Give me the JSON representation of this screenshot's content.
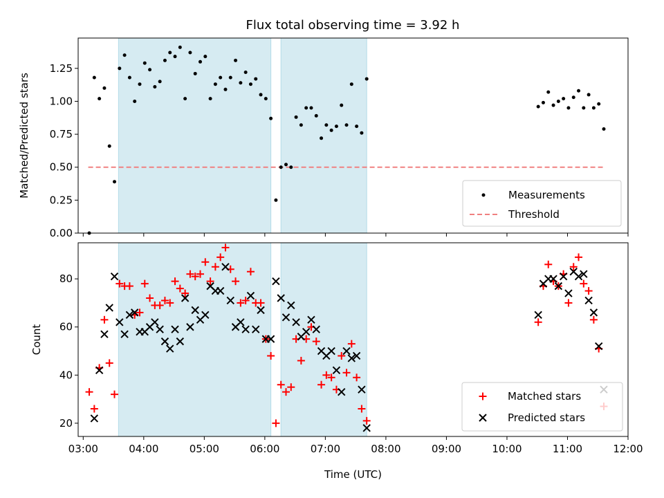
{
  "chart_data": {
    "type": "scatter",
    "title": "Flux total observing time = 3.92 h",
    "xlabel": "Time (UTC)",
    "x_ticks": [
      "03:00",
      "04:00",
      "05:00",
      "06:00",
      "07:00",
      "08:00",
      "09:00",
      "10:00",
      "11:00",
      "12:00"
    ],
    "xlim": [
      "02:55",
      "12:00"
    ],
    "shaded_intervals": [
      [
        "03:35",
        "06:06"
      ],
      [
        "06:16",
        "07:41"
      ]
    ],
    "shade_color": "#add8e6",
    "panels": [
      {
        "ylabel": "Matched/Predicted stars",
        "ylim": [
          0,
          1.48
        ],
        "y_ticks": [
          "0.00",
          "0.25",
          "0.50",
          "0.75",
          "1.00",
          "1.25"
        ],
        "legend_position": "lower-right",
        "threshold": {
          "name": "Threshold",
          "value": 0.5,
          "x_range": [
            "03:05",
            "11:35"
          ],
          "color": "#f08080"
        },
        "series": [
          {
            "name": "Measurements",
            "color": "#000000",
            "marker": "dot",
            "points": [
              [
                "03:06",
                0.0
              ],
              [
                "03:11",
                1.18
              ],
              [
                "03:16",
                1.02
              ],
              [
                "03:21",
                1.1
              ],
              [
                "03:26",
                0.66
              ],
              [
                "03:31",
                0.39
              ],
              [
                "03:36",
                1.25
              ],
              [
                "03:41",
                1.35
              ],
              [
                "03:46",
                1.18
              ],
              [
                "03:51",
                1.0
              ],
              [
                "03:56",
                1.13
              ],
              [
                "04:01",
                1.29
              ],
              [
                "04:06",
                1.24
              ],
              [
                "04:11",
                1.11
              ],
              [
                "04:16",
                1.15
              ],
              [
                "04:21",
                1.31
              ],
              [
                "04:26",
                1.37
              ],
              [
                "04:31",
                1.34
              ],
              [
                "04:36",
                1.41
              ],
              [
                "04:41",
                1.02
              ],
              [
                "04:46",
                1.37
              ],
              [
                "04:51",
                1.21
              ],
              [
                "04:56",
                1.3
              ],
              [
                "05:01",
                1.34
              ],
              [
                "05:06",
                1.02
              ],
              [
                "05:11",
                1.13
              ],
              [
                "05:16",
                1.18
              ],
              [
                "05:21",
                1.09
              ],
              [
                "05:26",
                1.18
              ],
              [
                "05:31",
                1.31
              ],
              [
                "05:36",
                1.14
              ],
              [
                "05:41",
                1.22
              ],
              [
                "05:46",
                1.13
              ],
              [
                "05:51",
                1.17
              ],
              [
                "05:56",
                1.05
              ],
              [
                "06:01",
                1.02
              ],
              [
                "06:06",
                0.87
              ],
              [
                "06:11",
                0.25
              ],
              [
                "06:16",
                0.5
              ],
              [
                "06:21",
                0.52
              ],
              [
                "06:26",
                0.5
              ],
              [
                "06:31",
                0.88
              ],
              [
                "06:36",
                0.82
              ],
              [
                "06:41",
                0.95
              ],
              [
                "06:46",
                0.95
              ],
              [
                "06:51",
                0.89
              ],
              [
                "06:56",
                0.72
              ],
              [
                "07:01",
                0.82
              ],
              [
                "07:06",
                0.78
              ],
              [
                "07:11",
                0.81
              ],
              [
                "07:16",
                0.97
              ],
              [
                "07:21",
                0.82
              ],
              [
                "07:26",
                1.13
              ],
              [
                "07:31",
                0.81
              ],
              [
                "07:36",
                0.76
              ],
              [
                "07:41",
                1.17
              ],
              [
                "10:31",
                0.96
              ],
              [
                "10:36",
                0.99
              ],
              [
                "10:41",
                1.07
              ],
              [
                "10:46",
                0.97
              ],
              [
                "10:51",
                1.0
              ],
              [
                "10:56",
                1.02
              ],
              [
                "11:01",
                0.95
              ],
              [
                "11:06",
                1.03
              ],
              [
                "11:11",
                1.08
              ],
              [
                "11:16",
                0.95
              ],
              [
                "11:21",
                1.05
              ],
              [
                "11:26",
                0.95
              ],
              [
                "11:31",
                0.98
              ],
              [
                "11:36",
                0.79
              ]
            ]
          }
        ]
      },
      {
        "ylabel": "Count",
        "ylim": [
          14.5,
          95
        ],
        "y_ticks": [
          "20",
          "40",
          "60",
          "80"
        ],
        "legend_position": "lower-right",
        "series": [
          {
            "name": "Matched stars",
            "color": "#ff0000",
            "marker": "plus",
            "points": [
              [
                "03:06",
                33
              ],
              [
                "03:11",
                26
              ],
              [
                "03:16",
                43
              ],
              [
                "03:21",
                63
              ],
              [
                "03:26",
                45
              ],
              [
                "03:31",
                32
              ],
              [
                "03:36",
                78
              ],
              [
                "03:41",
                77
              ],
              [
                "03:46",
                77
              ],
              [
                "03:51",
                65
              ],
              [
                "03:56",
                66
              ],
              [
                "04:01",
                78
              ],
              [
                "04:06",
                72
              ],
              [
                "04:11",
                69
              ],
              [
                "04:16",
                69
              ],
              [
                "04:21",
                71
              ],
              [
                "04:26",
                70
              ],
              [
                "04:31",
                79
              ],
              [
                "04:36",
                76
              ],
              [
                "04:41",
                74
              ],
              [
                "04:46",
                82
              ],
              [
                "04:51",
                81
              ],
              [
                "04:56",
                82
              ],
              [
                "05:01",
                87
              ],
              [
                "05:06",
                79
              ],
              [
                "05:11",
                85
              ],
              [
                "05:16",
                89
              ],
              [
                "05:21",
                93
              ],
              [
                "05:26",
                84
              ],
              [
                "05:31",
                79
              ],
              [
                "05:36",
                70
              ],
              [
                "05:41",
                71
              ],
              [
                "05:46",
                83
              ],
              [
                "05:51",
                70
              ],
              [
                "05:56",
                70
              ],
              [
                "06:01",
                55
              ],
              [
                "06:06",
                48
              ],
              [
                "06:11",
                20
              ],
              [
                "06:16",
                36
              ],
              [
                "06:21",
                33
              ],
              [
                "06:26",
                35
              ],
              [
                "06:31",
                55
              ],
              [
                "06:36",
                46
              ],
              [
                "06:41",
                55
              ],
              [
                "06:46",
                60
              ],
              [
                "06:51",
                54
              ],
              [
                "06:56",
                36
              ],
              [
                "07:01",
                40
              ],
              [
                "07:06",
                39
              ],
              [
                "07:11",
                34
              ],
              [
                "07:16",
                48
              ],
              [
                "07:21",
                41
              ],
              [
                "07:26",
                53
              ],
              [
                "07:31",
                39
              ],
              [
                "07:36",
                26
              ],
              [
                "07:41",
                21
              ],
              [
                "10:31",
                62
              ],
              [
                "10:36",
                77
              ],
              [
                "10:41",
                86
              ],
              [
                "10:46",
                79
              ],
              [
                "10:51",
                77
              ],
              [
                "10:56",
                82
              ],
              [
                "11:01",
                70
              ],
              [
                "11:06",
                85
              ],
              [
                "11:11",
                89
              ],
              [
                "11:16",
                78
              ],
              [
                "11:21",
                75
              ],
              [
                "11:26",
                63
              ],
              [
                "11:31",
                51
              ],
              [
                "11:36",
                27
              ]
            ]
          },
          {
            "name": "Predicted stars",
            "color": "#000000",
            "marker": "x",
            "points": [
              [
                "03:11",
                22
              ],
              [
                "03:16",
                42
              ],
              [
                "03:21",
                57
              ],
              [
                "03:26",
                68
              ],
              [
                "03:31",
                81
              ],
              [
                "03:36",
                62
              ],
              [
                "03:41",
                57
              ],
              [
                "03:46",
                65
              ],
              [
                "03:51",
                66
              ],
              [
                "03:56",
                58
              ],
              [
                "04:01",
                58
              ],
              [
                "04:06",
                60
              ],
              [
                "04:11",
                62
              ],
              [
                "04:16",
                59
              ],
              [
                "04:21",
                54
              ],
              [
                "04:26",
                51
              ],
              [
                "04:31",
                59
              ],
              [
                "04:36",
                54
              ],
              [
                "04:41",
                72
              ],
              [
                "04:46",
                60
              ],
              [
                "04:51",
                67
              ],
              [
                "04:56",
                63
              ],
              [
                "05:01",
                65
              ],
              [
                "05:06",
                77
              ],
              [
                "05:11",
                75
              ],
              [
                "05:16",
                75
              ],
              [
                "05:21",
                85
              ],
              [
                "05:26",
                71
              ],
              [
                "05:31",
                60
              ],
              [
                "05:36",
                62
              ],
              [
                "05:41",
                59
              ],
              [
                "05:46",
                73
              ],
              [
                "05:51",
                59
              ],
              [
                "05:56",
                67
              ],
              [
                "06:01",
                55
              ],
              [
                "06:06",
                55
              ],
              [
                "06:11",
                79
              ],
              [
                "06:16",
                72
              ],
              [
                "06:21",
                64
              ],
              [
                "06:26",
                69
              ],
              [
                "06:31",
                62
              ],
              [
                "06:36",
                56
              ],
              [
                "06:41",
                58
              ],
              [
                "06:46",
                63
              ],
              [
                "06:51",
                59
              ],
              [
                "06:56",
                50
              ],
              [
                "07:01",
                48
              ],
              [
                "07:06",
                50
              ],
              [
                "07:11",
                42
              ],
              [
                "07:16",
                33
              ],
              [
                "07:21",
                50
              ],
              [
                "07:26",
                47
              ],
              [
                "07:31",
                48
              ],
              [
                "07:36",
                34
              ],
              [
                "07:41",
                18
              ],
              [
                "10:31",
                65
              ],
              [
                "10:36",
                78
              ],
              [
                "10:41",
                80
              ],
              [
                "10:46",
                80
              ],
              [
                "10:51",
                77
              ],
              [
                "10:56",
                81
              ],
              [
                "11:01",
                74
              ],
              [
                "11:06",
                83
              ],
              [
                "11:11",
                81
              ],
              [
                "11:16",
                82
              ],
              [
                "11:21",
                71
              ],
              [
                "11:26",
                66
              ],
              [
                "11:31",
                52
              ],
              [
                "11:36",
                34
              ]
            ]
          }
        ]
      }
    ]
  }
}
